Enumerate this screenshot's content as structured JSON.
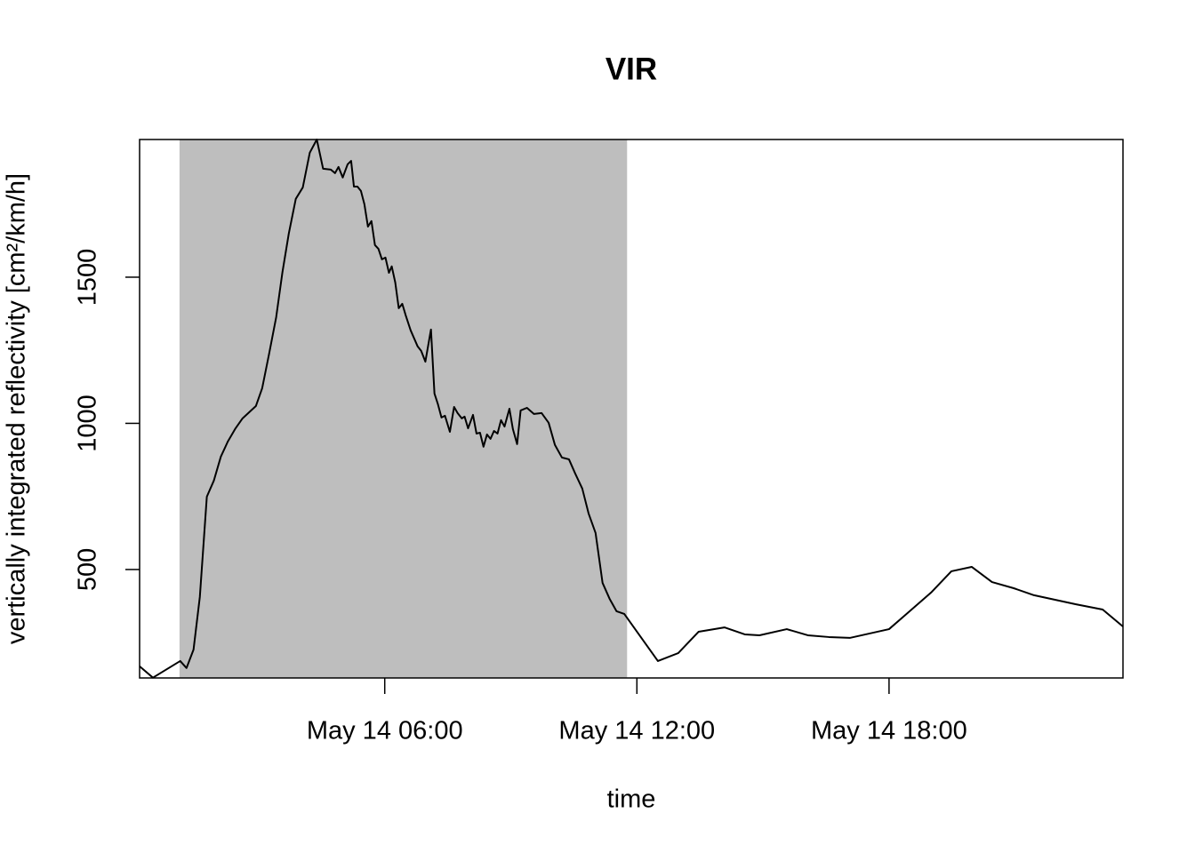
{
  "chart_data": {
    "type": "line",
    "title": "VIR",
    "xlabel": "time",
    "ylabel": "vertically integrated reflectivity [cm²/km/h]",
    "x": [
      "May 14 00:10",
      "May 14 00:29",
      "May 14 01:08",
      "May 14 01:17",
      "May 14 01:27",
      "May 14 01:36",
      "May 14 01:46",
      "May 14 01:56",
      "May 14 02:06",
      "May 14 02:16",
      "May 14 02:27",
      "May 14 02:37",
      "May 14 02:56",
      "May 14 03:05",
      "May 14 03:15",
      "May 14 03:25",
      "May 14 03:34",
      "May 14 03:43",
      "May 14 03:53",
      "May 14 04:03",
      "May 14 04:13",
      "May 14 04:23",
      "May 14 04:32",
      "May 14 04:43",
      "May 14 04:49",
      "May 14 04:54",
      "May 14 05:00",
      "May 14 05:07",
      "May 14 05:12",
      "May 14 05:16",
      "May 14 05:21",
      "May 14 05:26",
      "May 14 05:31",
      "May 14 05:36",
      "May 14 05:41",
      "May 14 05:46",
      "May 14 05:51",
      "May 14 05:56",
      "May 14 06:01",
      "May 14 06:06",
      "May 14 06:10",
      "May 14 06:15",
      "May 14 06:20",
      "May 14 06:25",
      "May 14 06:30",
      "May 14 06:37",
      "May 14 06:47",
      "May 14 06:52",
      "May 14 06:58",
      "May 14 07:06",
      "May 14 07:11",
      "May 14 07:16",
      "May 14 07:21",
      "May 14 07:26",
      "May 14 07:33",
      "May 14 07:39",
      "May 14 07:44",
      "May 14 07:50",
      "May 14 07:54",
      "May 14 07:59",
      "May 14 08:06",
      "May 14 08:11",
      "May 14 08:16",
      "May 14 08:21",
      "May 14 08:26",
      "May 14 08:31",
      "May 14 08:36",
      "May 14 08:41",
      "May 14 08:46",
      "May 14 08:51",
      "May 14 08:58",
      "May 14 09:03",
      "May 14 09:09",
      "May 14 09:14",
      "May 14 09:23",
      "May 14 09:33",
      "May 14 09:44",
      "May 14 09:54",
      "May 14 10:03",
      "May 14 10:13",
      "May 14 10:23",
      "May 14 10:32",
      "May 14 10:42",
      "May 14 10:51",
      "May 14 11:01",
      "May 14 11:11",
      "May 14 11:21",
      "May 14 11:31",
      "May 14 11:42",
      "May 14 12:30",
      "May 14 12:59",
      "May 14 13:28",
      "May 14 14:05",
      "May 14 14:34",
      "May 14 14:55",
      "May 14 15:34",
      "May 14 16:04",
      "May 14 16:34",
      "May 14 17:04",
      "May 14 18:00",
      "May 14 19:00",
      "May 14 19:29",
      "May 14 19:58",
      "May 14 20:27",
      "May 14 20:58",
      "May 14 21:27",
      "May 14 22:27",
      "May 14 23:05",
      "May 14 23:34"
    ],
    "values": [
      169,
      130,
      187,
      163,
      226,
      406,
      749,
      804,
      886,
      938,
      983,
      1017,
      1059,
      1120,
      1239,
      1363,
      1518,
      1649,
      1768,
      1807,
      1926,
      1971,
      1871,
      1868,
      1856,
      1877,
      1841,
      1886,
      1898,
      1810,
      1810,
      1795,
      1749,
      1673,
      1692,
      1610,
      1597,
      1561,
      1567,
      1515,
      1537,
      1482,
      1394,
      1409,
      1369,
      1318,
      1263,
      1248,
      1211,
      1321,
      1102,
      1065,
      1020,
      1026,
      971,
      1056,
      1035,
      1017,
      1023,
      983,
      1029,
      965,
      968,
      920,
      962,
      947,
      974,
      965,
      1011,
      989,
      1050,
      980,
      929,
      1044,
      1053,
      1032,
      1035,
      1002,
      926,
      883,
      877,
      828,
      777,
      692,
      625,
      454,
      400,
      357,
      348,
      187,
      214,
      287,
      302,
      278,
      275,
      296,
      275,
      269,
      266,
      296,
      421,
      494,
      509,
      457,
      436,
      412,
      381,
      363,
      305
    ],
    "color": "#000000",
    "highlight": {
      "from": "May 14 01:07",
      "to": "May 14 11:46",
      "color": "#bebebe"
    },
    "xlim": [
      "May 14 00:10",
      "May 14 23:34"
    ],
    "xticks": [
      "May 14 06:00",
      "May 14 12:00",
      "May 14 18:00"
    ],
    "ylim": [
      129,
      1971
    ],
    "yticks": [
      500,
      1000,
      1500
    ]
  }
}
